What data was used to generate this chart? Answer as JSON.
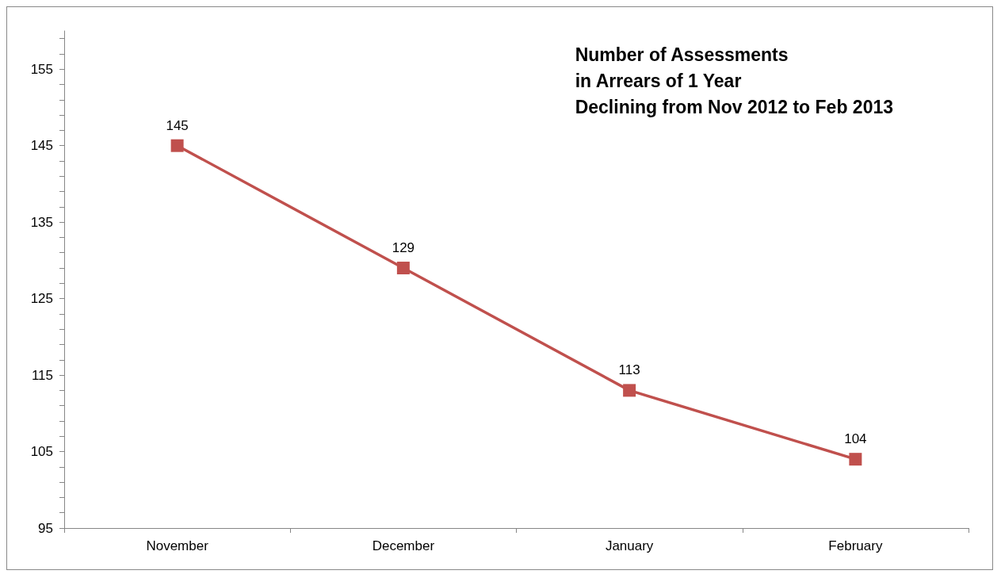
{
  "chart_data": {
    "type": "line",
    "title": "Number of Assessments\nin Arrears of 1 Year\nDeclining from Nov 2012 to Feb 2013",
    "categories": [
      "November",
      "December",
      "January",
      "February"
    ],
    "series": [
      {
        "color": "#c0504d",
        "values": [
          145,
          129,
          113,
          104
        ]
      }
    ],
    "ylim": [
      95,
      160
    ],
    "yticks": [
      95,
      {
        "value": 97,
        "label": null
      },
      {
        "value": 99,
        "label": null
      },
      {
        "value": 101,
        "label": null
      },
      {
        "value": 103,
        "label": null
      },
      105,
      {
        "value": 107,
        "label": null
      },
      {
        "value": 109,
        "label": null
      },
      {
        "value": 111,
        "label": null
      },
      {
        "value": 113,
        "label": null
      },
      115,
      {
        "value": 117,
        "label": null
      },
      {
        "value": 119,
        "label": null
      },
      {
        "value": 121,
        "label": null
      },
      {
        "value": 123,
        "label": null
      },
      125,
      {
        "value": 127,
        "label": null
      },
      {
        "value": 129,
        "label": null
      },
      {
        "value": 131,
        "label": null
      },
      {
        "value": 133,
        "label": null
      },
      135,
      {
        "value": 137,
        "label": null
      },
      {
        "value": 139,
        "label": null
      },
      {
        "value": 141,
        "label": null
      },
      {
        "value": 143,
        "label": null
      },
      145,
      {
        "value": 147,
        "label": null
      },
      {
        "value": 149,
        "label": null
      },
      {
        "value": 151,
        "label": null
      },
      {
        "value": 153,
        "label": null
      },
      155,
      {
        "value": 157,
        "label": null
      },
      {
        "value": 159,
        "label": null
      }
    ],
    "grid": false,
    "marker": "square",
    "line_style": "solid",
    "data_labels": true
  }
}
